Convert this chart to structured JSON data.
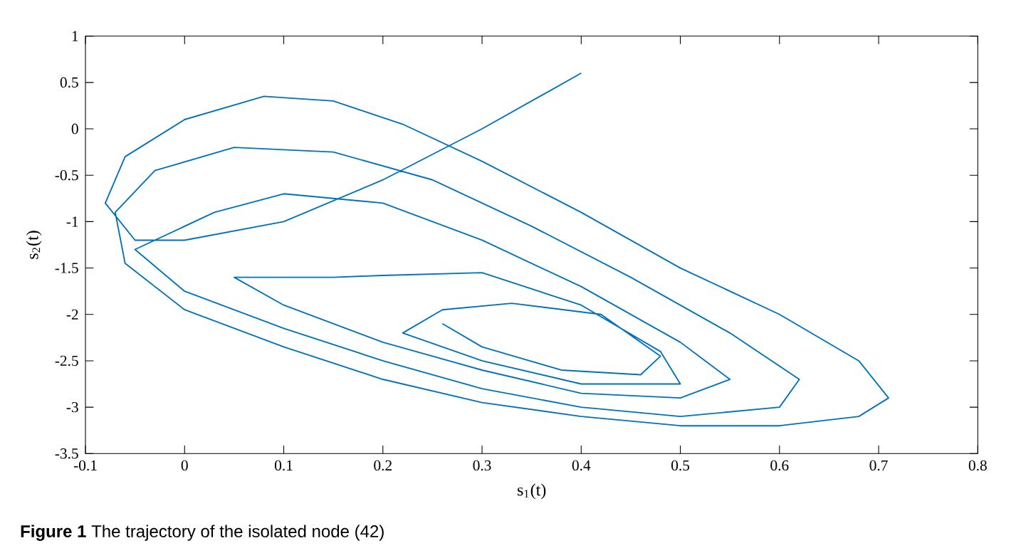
{
  "chart_data": {
    "type": "line",
    "xlabel": "s$_{1}$(t)",
    "ylabel": "s$_{2}$(t)",
    "annotations": [
      "**Figure 1** The trajectory of the isolated node (42)"
    ],
    "xlim": [
      -0.1,
      0.8
    ],
    "xticks": [
      -0.1,
      0,
      0.1,
      0.2,
      0.3,
      0.4,
      0.5,
      0.6,
      0.7,
      0.8
    ],
    "ylim": [
      -3.5,
      1
    ],
    "yticks": [
      -3.5,
      -3,
      -2.5,
      -2,
      -1.5,
      -1,
      -0.5,
      0,
      0.5,
      1
    ],
    "grid": false,
    "marker": "none",
    "line_style": "solid",
    "series": [
      {
        "color": "#0072bd",
        "x": [
          0.4,
          0.3,
          0.2,
          0.1,
          0.0,
          -0.05,
          -0.08,
          -0.06,
          0.0,
          0.08,
          0.15,
          0.22,
          0.3,
          0.4,
          0.5,
          0.6,
          0.68,
          0.71,
          0.68,
          0.6,
          0.5,
          0.4,
          0.3,
          0.2,
          0.1,
          0.0,
          -0.06,
          -0.07,
          -0.03,
          0.05,
          0.15,
          0.25,
          0.35,
          0.45,
          0.55,
          0.62,
          0.6,
          0.5,
          0.4,
          0.3,
          0.2,
          0.1,
          0.0,
          -0.05,
          0.03,
          0.1,
          0.2,
          0.3,
          0.4,
          0.5,
          0.55,
          0.5,
          0.4,
          0.3,
          0.2,
          0.1,
          0.05,
          0.15,
          0.2,
          0.3,
          0.4,
          0.48,
          0.5,
          0.4,
          0.3,
          0.22,
          0.26,
          0.33,
          0.42,
          0.48,
          0.46,
          0.38,
          0.3,
          0.26
        ],
        "values": [
          0.6,
          0.0,
          -0.55,
          -1.0,
          -1.2,
          -1.2,
          -0.8,
          -0.3,
          0.1,
          0.35,
          0.3,
          0.05,
          -0.35,
          -0.9,
          -1.5,
          -2.0,
          -2.5,
          -2.9,
          -3.1,
          -3.2,
          -3.2,
          -3.1,
          -2.95,
          -2.7,
          -2.35,
          -1.95,
          -1.45,
          -0.9,
          -0.45,
          -0.2,
          -0.25,
          -0.55,
          -1.05,
          -1.6,
          -2.2,
          -2.7,
          -3.0,
          -3.1,
          -3.0,
          -2.8,
          -2.5,
          -2.15,
          -1.75,
          -1.3,
          -0.9,
          -0.7,
          -0.8,
          -1.2,
          -1.7,
          -2.3,
          -2.7,
          -2.9,
          -2.85,
          -2.6,
          -2.3,
          -1.9,
          -1.6,
          -1.6,
          -1.58,
          -1.55,
          -1.9,
          -2.4,
          -2.75,
          -2.75,
          -2.5,
          -2.2,
          -1.95,
          -1.88,
          -2.0,
          -2.45,
          -2.65,
          -2.6,
          -2.35,
          -2.1
        ]
      }
    ]
  }
}
